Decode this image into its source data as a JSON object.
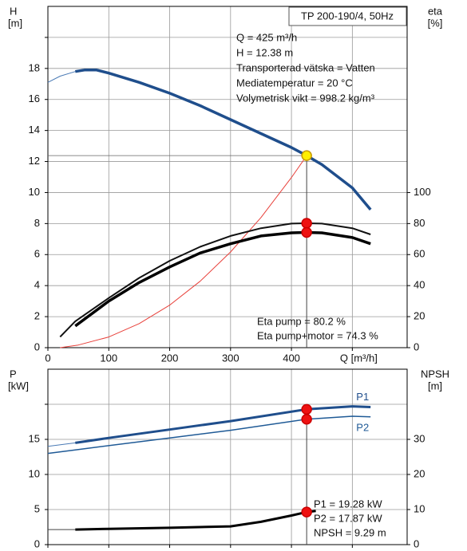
{
  "chart_data": [
    {
      "type": "line",
      "title": "TP 200-190/4, 50Hz",
      "y_label": "H",
      "y_unit": "[m]",
      "y2_label": "eta",
      "y2_unit": "[%]",
      "x_label": "Q [m³/h]",
      "xlim": [
        0,
        590
      ],
      "xticks": [
        0,
        100,
        200,
        300,
        400,
        {
          "value": 500,
          "label": null
        }
      ],
      "ylim": [
        0,
        22
      ],
      "yticks": [
        0,
        2,
        4,
        6,
        8,
        10,
        12,
        14,
        16,
        18,
        {
          "value": 20,
          "label": null
        }
      ],
      "y2lim": [
        0,
        220
      ],
      "y2ticks": [
        0,
        20,
        40,
        60,
        80,
        100
      ],
      "grid": true,
      "annotations": [
        "Q = 425 m³/h",
        "H = 12.38 m",
        "Transporterad vätska = Vatten",
        "Mediatemperatur = 20 °C",
        "Volymetrisk vikt = 998.2 kg/m³"
      ],
      "footnotes": [
        "Eta pump = 80.2 %",
        "Eta pump+motor = 74.3 %"
      ],
      "series": [
        {
          "color": "#4a7ab5",
          "line_width": 1,
          "x": [
            0,
            20,
            45
          ],
          "values": [
            17.1,
            17.5,
            17.8
          ]
        },
        {
          "color": "#1f4e8c",
          "line_width": 3.5,
          "x": [
            45,
            60,
            80,
            100,
            150,
            200,
            250,
            300,
            350,
            400,
            425,
            450,
            500,
            530
          ],
          "values": [
            17.8,
            17.9,
            17.9,
            17.7,
            17.1,
            16.4,
            15.6,
            14.7,
            13.8,
            12.9,
            12.38,
            11.8,
            10.3,
            8.9
          ]
        },
        {
          "color": "#e8403a",
          "line_width": 1,
          "x": [
            20,
            50,
            100,
            150,
            200,
            250,
            300,
            350,
            400,
            425
          ],
          "values": [
            0,
            0.17,
            0.69,
            1.55,
            2.74,
            4.28,
            6.17,
            8.39,
            10.97,
            12.38
          ]
        },
        {
          "color": "#111111",
          "line_width": 2,
          "axis": "y2",
          "x": [
            20,
            45,
            100,
            150,
            200,
            250,
            300,
            350,
            400,
            425,
            450,
            500,
            530
          ],
          "values": [
            7,
            17,
            32,
            45,
            56,
            65,
            72,
            77,
            80,
            80.2,
            80,
            77,
            73
          ]
        },
        {
          "color": "#000000",
          "line_width": 3.5,
          "axis": "y2",
          "x": [
            45,
            100,
            150,
            200,
            250,
            300,
            350,
            400,
            425,
            450,
            500,
            530
          ],
          "values": [
            14,
            30,
            42,
            52,
            61,
            67,
            72,
            74,
            74.3,
            74,
            71,
            67
          ]
        }
      ],
      "markers": [
        {
          "x": 425,
          "value": 12.38,
          "color": "#ffee00"
        },
        {
          "x": 425,
          "value": 80.2,
          "axis": "y2",
          "color": "#ee1111"
        },
        {
          "x": 425,
          "value": 74.3,
          "axis": "y2",
          "color": "#ee1111"
        }
      ]
    },
    {
      "type": "line",
      "y_label": "P",
      "y_unit": "[kW]",
      "y2_label": "NPSH",
      "y2_unit": "[m]",
      "xlim": [
        0,
        590
      ],
      "xticks": [
        {
          "value": 0,
          "label": null
        },
        {
          "value": 100,
          "label": null
        },
        {
          "value": 200,
          "label": null
        },
        {
          "value": 300,
          "label": null
        },
        {
          "value": 400,
          "label": null
        },
        {
          "value": 500,
          "label": null
        }
      ],
      "ylim": [
        0,
        25
      ],
      "yticks": [
        0,
        5,
        10,
        15,
        {
          "value": 20,
          "label": null
        }
      ],
      "y2lim": [
        0,
        50
      ],
      "y2ticks": [
        0,
        10,
        20,
        30
      ],
      "grid": true,
      "footnotes": [
        "P1 = 19.28 kW",
        "P2 = 17.87 kW",
        "NPSH = 9.29 m"
      ],
      "series": [
        {
          "color": "#4a7ab5",
          "line_width": 1,
          "x": [
            0,
            45
          ],
          "values": [
            14.0,
            14.5
          ]
        },
        {
          "name": "P1",
          "color": "#1f4e8c",
          "line_width": 3,
          "x": [
            45,
            100,
            200,
            300,
            425,
            500,
            530
          ],
          "values": [
            14.5,
            15.2,
            16.4,
            17.6,
            19.28,
            19.7,
            19.6
          ]
        },
        {
          "name": "P2",
          "color": "#1f5a96",
          "line_width": 1.5,
          "x": [
            0,
            45,
            200,
            300,
            425,
            500,
            530
          ],
          "values": [
            13.0,
            13.5,
            15.2,
            16.3,
            17.87,
            18.3,
            18.2
          ]
        },
        {
          "color": "#444444",
          "line_width": 1,
          "axis": "y2",
          "x": [
            0,
            45
          ],
          "values": [
            4.3,
            4.3
          ]
        },
        {
          "color": "#000000",
          "line_width": 3,
          "axis": "y2",
          "x": [
            45,
            100,
            200,
            300,
            350,
            400,
            425,
            440
          ],
          "values": [
            4.3,
            4.5,
            4.8,
            5.2,
            6.5,
            8.3,
            9.29,
            9.6
          ]
        }
      ],
      "markers": [
        {
          "x": 425,
          "value": 19.28,
          "color": "#ee1111"
        },
        {
          "x": 425,
          "value": 17.87,
          "color": "#ee1111"
        },
        {
          "x": 425,
          "value": 9.29,
          "axis": "y2",
          "color": "#ee1111"
        }
      ]
    }
  ]
}
